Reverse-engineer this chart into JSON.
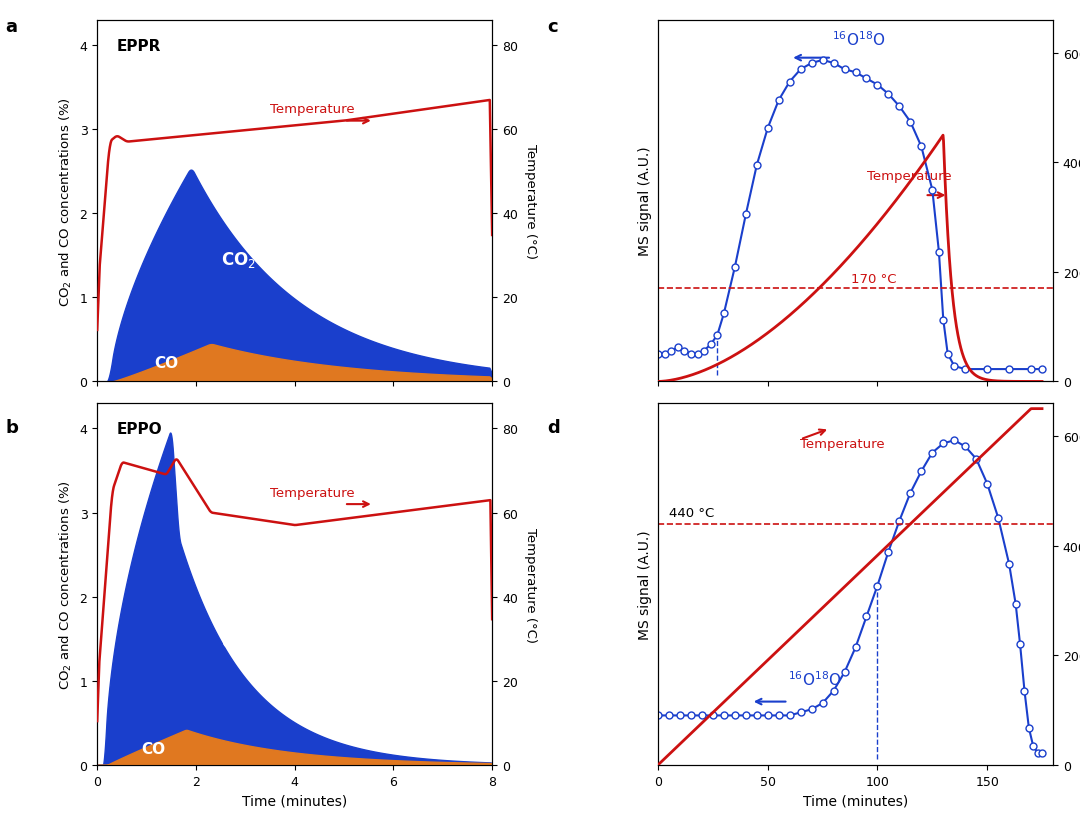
{
  "panel_a_label": "EPPR",
  "panel_b_label": "EPPO",
  "left_ylabel": "CO$_2$ and CO concentrations (%)",
  "right_ylabel_ab": "Temperature (°C)",
  "ms_ylabel": "MS signal (A.U.)",
  "xlabel_ab": "Time (minutes)",
  "xlabel_cd": "Time (minutes)",
  "co2_label": "CO$_2$",
  "co_label": "CO",
  "o18_label": "$^{16}$O$^{18}$O",
  "blue_color": "#1A3FCC",
  "orange_color": "#E07820",
  "red_color": "#CC1111",
  "ab_ylim": [
    0,
    4.3
  ],
  "ab_temp_ylim": [
    0,
    86
  ],
  "ab_xlim": [
    0,
    8
  ],
  "cd_xlim": [
    0,
    180
  ],
  "cd_ms_ylim_c": [
    0,
    1.15
  ],
  "cd_ms_ylim_d": [
    0,
    1.15
  ],
  "cd_temp_ylim": [
    0,
    660
  ]
}
